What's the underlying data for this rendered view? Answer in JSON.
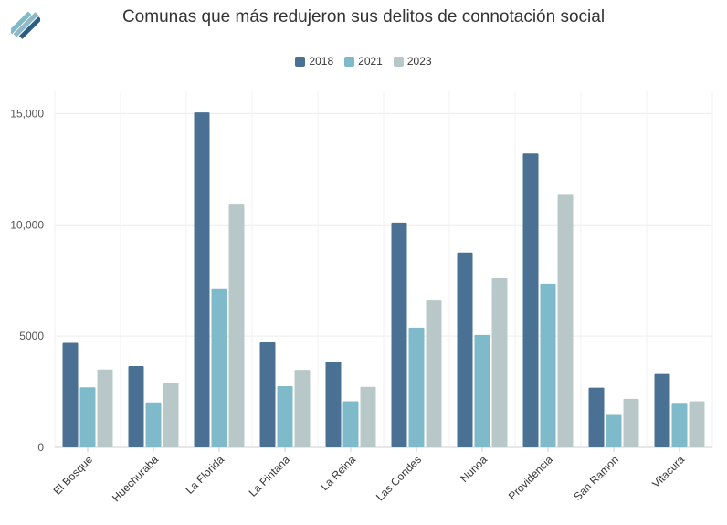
{
  "chart_data": {
    "type": "bar",
    "title": "Comunas que más redujeron sus delitos de connotación social",
    "categories": [
      "El Bosque",
      "Huechuraba",
      "La Florida",
      "La Pintana",
      "La Reina",
      "Las Condes",
      "Nunoa",
      "Providencia",
      "San Ramon",
      "Vitacura"
    ],
    "series": [
      {
        "name": "2018",
        "color": "#4a7194",
        "values": [
          4700,
          3650,
          15050,
          4720,
          3850,
          10100,
          8750,
          13200,
          2680,
          3300
        ]
      },
      {
        "name": "2021",
        "color": "#7fbacb",
        "values": [
          2700,
          2020,
          7150,
          2750,
          2070,
          5380,
          5050,
          7350,
          1500,
          2000
        ]
      },
      {
        "name": "2023",
        "color": "#b8c8c8",
        "values": [
          3500,
          2900,
          10950,
          3480,
          2720,
          6600,
          7600,
          11350,
          2180,
          2070
        ]
      }
    ],
    "yticks": [
      {
        "value": 0,
        "label": "0"
      },
      {
        "value": 5000,
        "label": "5000"
      },
      {
        "value": 10000,
        "label": "10,000"
      },
      {
        "value": 15000,
        "label": "15,000"
      }
    ],
    "ylim": [
      0,
      16000
    ],
    "xlabel": "",
    "ylabel": "",
    "legend_position": "top-center",
    "grid": true
  },
  "brand": {
    "logo_icon": "stripes-logo-icon"
  }
}
